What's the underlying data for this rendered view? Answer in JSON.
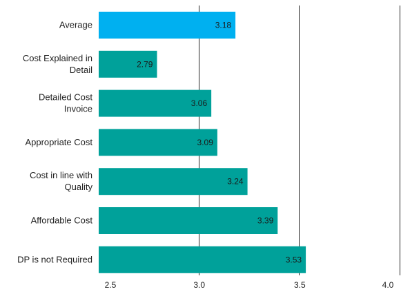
{
  "chart_data": {
    "type": "bar",
    "orientation": "horizontal",
    "title": "",
    "xlabel": "",
    "ylabel": "",
    "xlim": [
      2.5,
      4.0
    ],
    "ticks": [
      2.5,
      3.0,
      3.5,
      4.0
    ],
    "tick_labels": [
      "2.5",
      "3.0",
      "3.5",
      "4.0"
    ],
    "grid": "vertical",
    "legend": "none",
    "categories": [
      "Average",
      "Cost Explained in Detail",
      "Detailed Cost Invoice",
      "Appropriate Cost",
      "Cost in line with Quality",
      "Affordable Cost",
      "DP is not Required"
    ],
    "category_lines": [
      [
        "Average"
      ],
      [
        "Cost Explained in",
        "Detail"
      ],
      [
        "Detailed Cost",
        "Invoice"
      ],
      [
        "Appropriate Cost"
      ],
      [
        "Cost in line with",
        "Quality"
      ],
      [
        "Affordable Cost"
      ],
      [
        "DP is not Required"
      ]
    ],
    "values": [
      3.18,
      2.79,
      3.06,
      3.09,
      3.24,
      3.39,
      3.53
    ],
    "value_labels": [
      "3.18",
      "2.79",
      "3.06",
      "3.09",
      "3.24",
      "3.39",
      "3.53"
    ],
    "colors": {
      "highlight": "#00b0f0",
      "default": "#00a19a",
      "grid": "#222222",
      "text": "#222222"
    },
    "highlight_index": 0
  }
}
